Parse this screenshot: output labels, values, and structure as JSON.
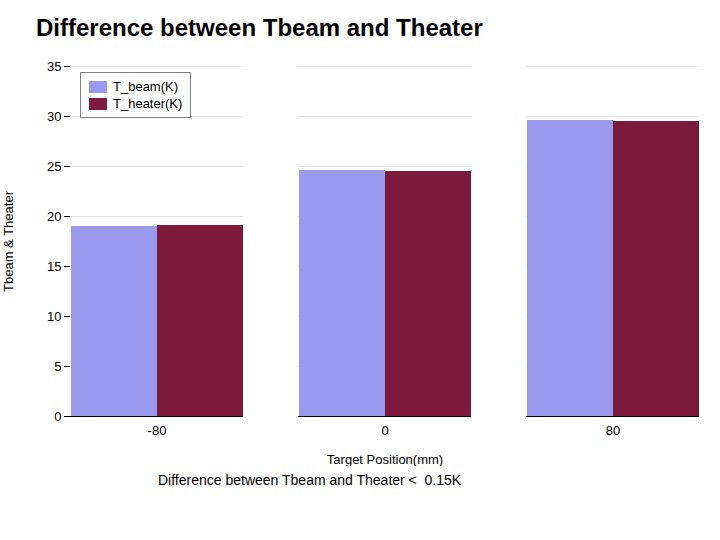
{
  "chart_data": {
    "type": "bar",
    "title": "Difference between Tbeam and Theater",
    "categories": [
      "-80",
      "0",
      "80"
    ],
    "series": [
      {
        "name": "T_beam(K)",
        "color": "#9999ee",
        "values": [
          19.0,
          24.6,
          29.6
        ]
      },
      {
        "name": "T_heater(K)",
        "color": "#7b1a3a",
        "values": [
          19.1,
          24.5,
          29.5
        ]
      }
    ],
    "xlabel": "Target Position(mm)",
    "ylabel": "Tbeam & Theater",
    "annotations": [
      "Difference between Tbeam and Theater <  0.15K"
    ],
    "ylim": [
      0,
      35
    ],
    "yticks": [
      0,
      5,
      10,
      15,
      20,
      25,
      30,
      35
    ],
    "grid": true,
    "legend": "upper left"
  }
}
